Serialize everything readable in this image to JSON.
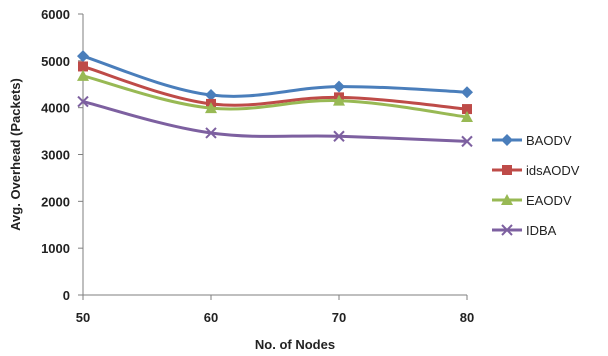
{
  "chart_data": {
    "type": "line",
    "title": "",
    "xlabel": "No. of Nodes",
    "ylabel": "Avg. Overhead (Packets)",
    "x": [
      50,
      60,
      70,
      80
    ],
    "ylim": [
      0,
      6000
    ],
    "yticks": [
      0,
      1000,
      2000,
      3000,
      4000,
      5000,
      6000
    ],
    "grid": false,
    "legend_position": "right",
    "series": [
      {
        "name": "BAODV",
        "values": [
          5100,
          4270,
          4450,
          4330
        ],
        "color": "#4a7ebb",
        "marker": "diamond"
      },
      {
        "name": "idsAODV",
        "values": [
          4880,
          4080,
          4220,
          3970
        ],
        "color": "#be4b48",
        "marker": "square"
      },
      {
        "name": "EAODV",
        "values": [
          4680,
          3990,
          4150,
          3800
        ],
        "color": "#98b954",
        "marker": "triangle"
      },
      {
        "name": "IDBA",
        "values": [
          4130,
          3460,
          3390,
          3280
        ],
        "color": "#7d60a0",
        "marker": "x"
      }
    ]
  }
}
